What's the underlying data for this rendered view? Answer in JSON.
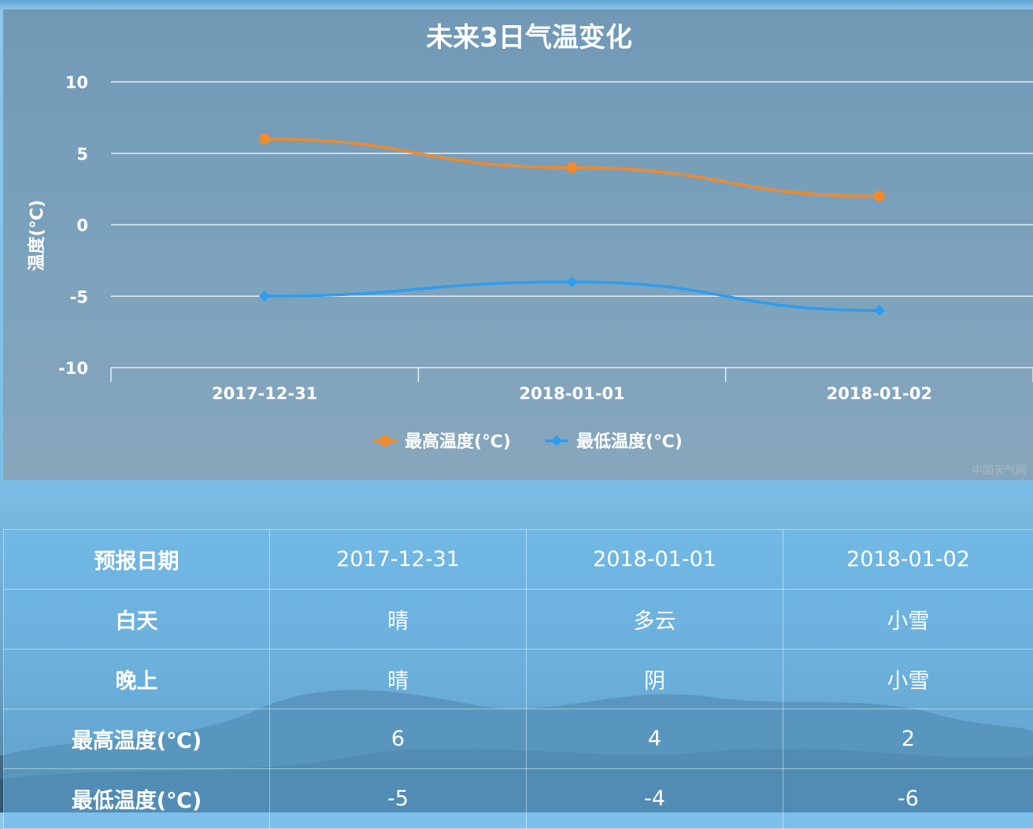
{
  "chart_data": {
    "type": "line",
    "title": "未来3日气温变化",
    "ylabel": "温度(℃)",
    "xlabel": "",
    "categories": [
      "2017-12-31",
      "2018-01-01",
      "2018-01-02"
    ],
    "ylim": [
      -10,
      10
    ],
    "yticks": [
      "10",
      "5",
      "0",
      "-5",
      "-10"
    ],
    "grid": true,
    "legend_position": "bottom-center",
    "series": [
      {
        "name": "最高温度(℃)",
        "values": [
          6,
          4,
          2
        ],
        "color": "#f08a2b",
        "marker": "circle"
      },
      {
        "name": "最低温度(℃)",
        "values": [
          -5,
          -4,
          -6
        ],
        "color": "#2e9cef",
        "marker": "diamond"
      }
    ],
    "credit": "中国天气网"
  },
  "table": {
    "header_label": "预报日期",
    "dates": [
      "2017-12-31",
      "2018-01-01",
      "2018-01-02"
    ],
    "rows": [
      {
        "label": "白天",
        "values": [
          "晴",
          "多云",
          "小雪"
        ]
      },
      {
        "label": "晚上",
        "values": [
          "晴",
          "阴",
          "小雪"
        ]
      },
      {
        "label": "最高温度(℃)",
        "values": [
          "6",
          "4",
          "2"
        ]
      },
      {
        "label": "最低温度(℃)",
        "values": [
          "-5",
          "-4",
          "-6"
        ]
      }
    ]
  }
}
